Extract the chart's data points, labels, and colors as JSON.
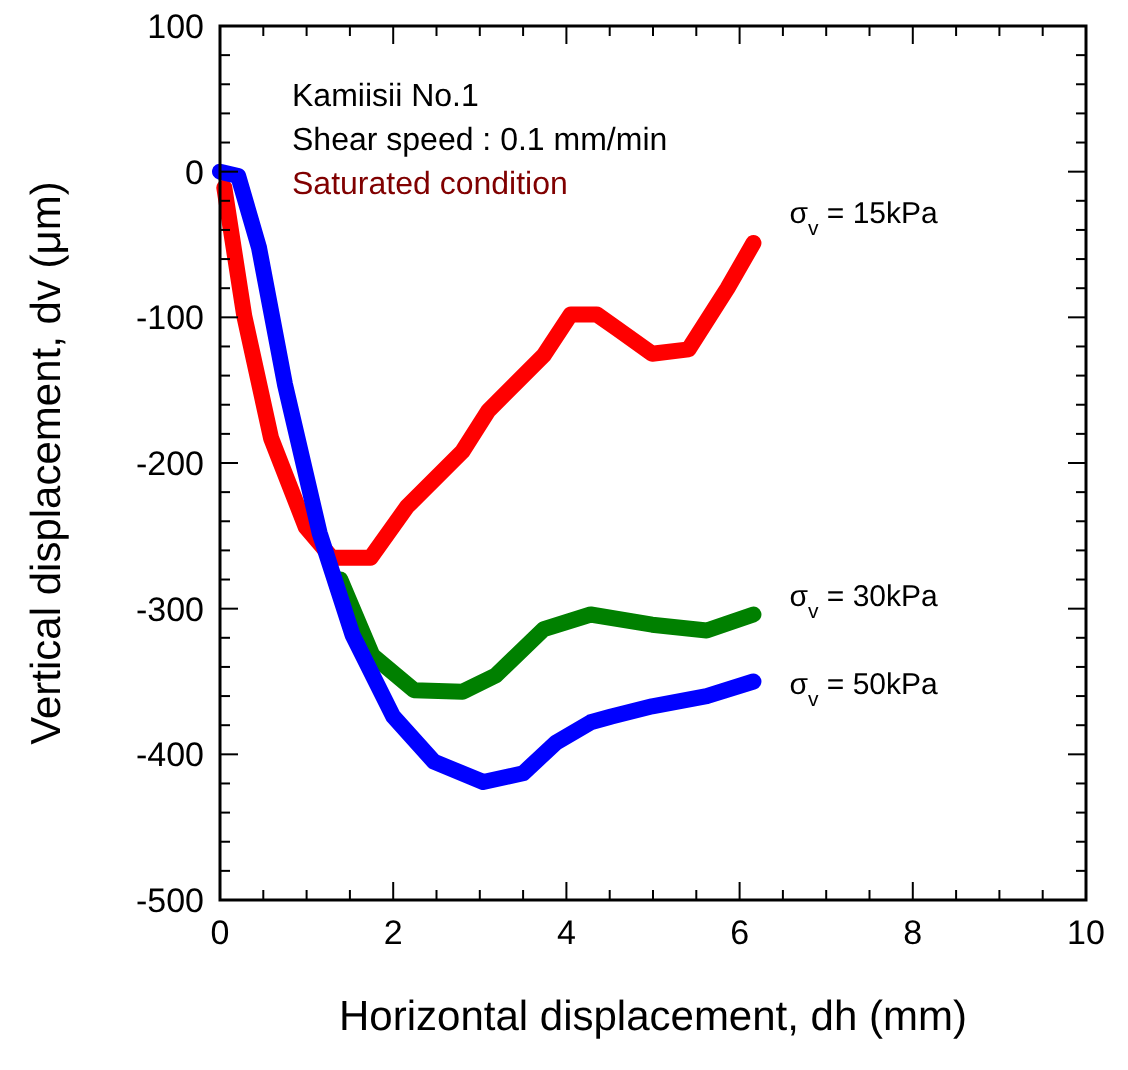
{
  "chart_data": {
    "type": "line",
    "xlabel": "Horizontal displacement, dh (mm)",
    "ylabel": "Vertical displacement, dv (μm)",
    "xlim": [
      0,
      10
    ],
    "xticks": [
      0,
      2,
      4,
      6,
      8,
      10
    ],
    "ylim": [
      -500,
      100
    ],
    "yticks": [
      -500,
      -400,
      -300,
      -200,
      -100,
      0,
      100
    ],
    "grid": false,
    "legend": false,
    "marker": "none",
    "line_style": "solid",
    "annotations": [
      "Kamiisii No.1",
      "Shear speed : 0.1 mm/min",
      "Saturated condition"
    ],
    "series": [
      {
        "name": "σ$_{v}$ = 15kPa",
        "color": "#ff0000",
        "x": [
          0.05,
          0.28,
          0.59,
          0.99,
          1.29,
          1.74,
          2.16,
          2.8,
          3.1,
          3.74,
          4.05,
          4.35,
          4.59,
          4.99,
          5.41,
          5.86,
          6.16
        ],
        "values": [
          -11,
          -99,
          -183,
          -244,
          -265,
          -265,
          -230,
          -192,
          -164,
          -126,
          -98,
          -98,
          -108,
          -125,
          -122,
          -80,
          -49
        ]
      },
      {
        "name": "σ$_{v}$ = 30kPa",
        "color": "#008000",
        "x": [
          1.39,
          1.76,
          2.24,
          2.8,
          3.18,
          3.74,
          4.28,
          4.99,
          5.62,
          6.16
        ],
        "values": [
          -280,
          -332,
          -356,
          -357,
          -346,
          -314,
          -304,
          -311,
          -315,
          -304
        ]
      },
      {
        "name": "σ$_{v}$ = 50kPa",
        "color": "#0000ff",
        "x": [
          0,
          0.21,
          0.45,
          0.75,
          1.15,
          1.53,
          2.0,
          2.47,
          3.04,
          3.5,
          3.88,
          4.28,
          4.52,
          4.99,
          5.62,
          6.16
        ],
        "values": [
          0,
          -3,
          -52,
          -146,
          -248,
          -318,
          -374,
          -405,
          -419,
          -413,
          -392,
          -378,
          -374,
          -367,
          -360,
          -350
        ]
      }
    ]
  }
}
